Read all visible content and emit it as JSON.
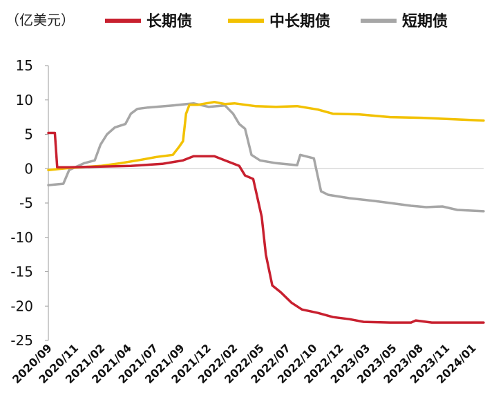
{
  "chart_data": {
    "type": "line",
    "unit_label": "（亿美元）",
    "ylim": [
      -25,
      15
    ],
    "yticks": [
      15,
      10,
      5,
      0,
      -5,
      -10,
      -15,
      -20,
      -25
    ],
    "x_ticks": [
      "2020/09",
      "2020/11",
      "2021/02",
      "2021/04",
      "2021/07",
      "2021/09",
      "2021/12",
      "2022/02",
      "2022/05",
      "2022/07",
      "2022/10",
      "2022/12",
      "2023/03",
      "2023/05",
      "2023/08",
      "2023/11",
      "2024/01"
    ],
    "x_start": "2020-09",
    "x_end": "2024-03",
    "legend_position": "top",
    "series": [
      {
        "name": "长期债",
        "color": "#c8202f",
        "points": [
          [
            "2020-09-01",
            5.2
          ],
          [
            "2020-09-20",
            5.2
          ],
          [
            "2020-09-27",
            0.2
          ],
          [
            "2020-11-01",
            0.2
          ],
          [
            "2021-02-01",
            0.3
          ],
          [
            "2021-05-01",
            0.4
          ],
          [
            "2021-08-01",
            0.7
          ],
          [
            "2021-10-01",
            1.2
          ],
          [
            "2021-11-01",
            1.8
          ],
          [
            "2022-01-01",
            1.8
          ],
          [
            "2022-02-01",
            1.2
          ],
          [
            "2022-03-15",
            0.4
          ],
          [
            "2022-04-01",
            -1.0
          ],
          [
            "2022-04-25",
            -1.5
          ],
          [
            "2022-05-20",
            -7.0
          ],
          [
            "2022-06-01",
            -12.5
          ],
          [
            "2022-06-20",
            -17.0
          ],
          [
            "2022-07-15",
            -18.0
          ],
          [
            "2022-08-15",
            -19.5
          ],
          [
            "2022-09-15",
            -20.5
          ],
          [
            "2022-11-01",
            -21.0
          ],
          [
            "2022-12-15",
            -21.6
          ],
          [
            "2023-02-01",
            -21.9
          ],
          [
            "2023-03-15",
            -22.3
          ],
          [
            "2023-06-01",
            -22.4
          ],
          [
            "2023-08-01",
            -22.4
          ],
          [
            "2023-08-15",
            -22.1
          ],
          [
            "2023-10-01",
            -22.4
          ],
          [
            "2024-01-01",
            -22.4
          ],
          [
            "2024-03-01",
            -22.4
          ]
        ]
      },
      {
        "name": "中长期债",
        "color": "#f2c100",
        "points": [
          [
            "2020-09-01",
            -0.2
          ],
          [
            "2020-11-01",
            0.1
          ],
          [
            "2021-02-01",
            0.4
          ],
          [
            "2021-04-01",
            0.8
          ],
          [
            "2021-06-01",
            1.3
          ],
          [
            "2021-07-15",
            1.7
          ],
          [
            "2021-09-01",
            2.0
          ],
          [
            "2021-09-20",
            3.2
          ],
          [
            "2021-10-01",
            4.0
          ],
          [
            "2021-10-10",
            8.0
          ],
          [
            "2021-10-20",
            9.3
          ],
          [
            "2021-11-15",
            9.3
          ],
          [
            "2022-01-01",
            9.7
          ],
          [
            "2022-02-01",
            9.4
          ],
          [
            "2022-03-01",
            9.5
          ],
          [
            "2022-05-01",
            9.1
          ],
          [
            "2022-07-01",
            9.0
          ],
          [
            "2022-09-01",
            9.1
          ],
          [
            "2022-11-01",
            8.6
          ],
          [
            "2022-12-15",
            8.0
          ],
          [
            "2023-03-01",
            7.9
          ],
          [
            "2023-06-01",
            7.5
          ],
          [
            "2023-09-01",
            7.4
          ],
          [
            "2023-12-01",
            7.2
          ],
          [
            "2024-03-01",
            7.0
          ]
        ]
      },
      {
        "name": "短期债",
        "color": "#a6a6a6",
        "points": [
          [
            "2020-09-01",
            -2.4
          ],
          [
            "2020-10-15",
            -2.2
          ],
          [
            "2020-11-01",
            -0.2
          ],
          [
            "2020-12-15",
            0.8
          ],
          [
            "2021-01-15",
            1.2
          ],
          [
            "2021-02-01",
            3.5
          ],
          [
            "2021-02-20",
            5.0
          ],
          [
            "2021-03-15",
            6.0
          ],
          [
            "2021-04-15",
            6.5
          ],
          [
            "2021-05-01",
            8.0
          ],
          [
            "2021-05-20",
            8.7
          ],
          [
            "2021-06-20",
            8.9
          ],
          [
            "2021-09-01",
            9.2
          ],
          [
            "2021-11-01",
            9.5
          ],
          [
            "2021-12-15",
            9.0
          ],
          [
            "2022-02-01",
            9.2
          ],
          [
            "2022-02-25",
            8.0
          ],
          [
            "2022-03-15",
            6.5
          ],
          [
            "2022-04-01",
            5.8
          ],
          [
            "2022-04-20",
            2.0
          ],
          [
            "2022-05-15",
            1.2
          ],
          [
            "2022-07-01",
            0.8
          ],
          [
            "2022-09-01",
            0.5
          ],
          [
            "2022-09-10",
            2.0
          ],
          [
            "2022-10-20",
            1.5
          ],
          [
            "2022-11-10",
            -3.3
          ],
          [
            "2022-12-01",
            -3.8
          ],
          [
            "2023-02-01",
            -4.3
          ],
          [
            "2023-04-15",
            -4.7
          ],
          [
            "2023-06-01",
            -5.0
          ],
          [
            "2023-08-01",
            -5.4
          ],
          [
            "2023-09-15",
            -5.6
          ],
          [
            "2023-11-01",
            -5.5
          ],
          [
            "2023-12-15",
            -6.0
          ],
          [
            "2024-03-01",
            -6.2
          ]
        ]
      }
    ]
  }
}
